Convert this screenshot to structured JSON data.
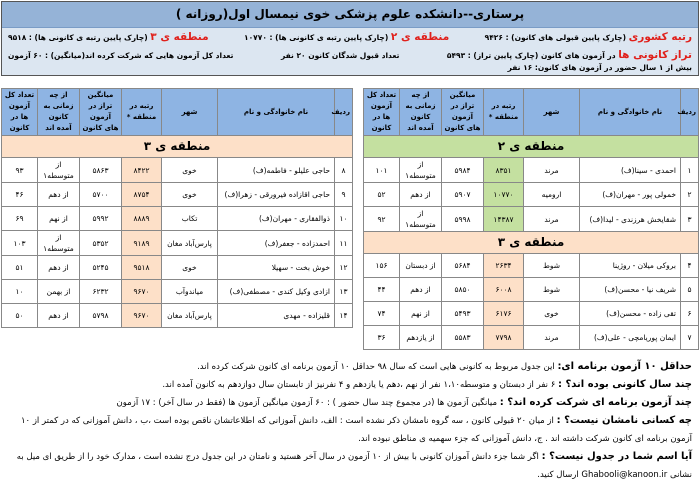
{
  "header": {
    "title": "پرستاری--دانشکده علوم پزشکی خوی نیمسال اول(روزانه )",
    "national_rank_label": "رتبه کشوری",
    "national_rank_text": "(چارک پایین قبولی های کانون) : ۹۴۲۶",
    "region2_label": "منطقه ی ۲",
    "region2_text": "(چارک پایین رتبه ی کانونی ها) : ۱۰۷۷۰",
    "region3_label": "منطقه ی ۳",
    "region3_text": "(چارک پایین رتبه ی کانونی ها) : ۹۵۱۸",
    "taraz_label": "تراز کانونی ها",
    "taraz_text": "در آزمون های کانون (چارک پایین تراز) : ۵۴۹۳",
    "accepted_count": "تعداد قبول شدگان کانون ۲۰ نفر",
    "total_exams": "تعداد کل آزمون هایی که شرکت کرده اند(میانگین) : ۶۰ آزمون",
    "over_one_year": "بیش از ۱ سال حضور در آزمون های کانون: ۱۶ نفر"
  },
  "columns": [
    "ردیف",
    "نام خانوادگی و نام",
    "شهر",
    "رتبه در منطقه *",
    "میانگین تراز در آزمون های کانون",
    "از چه زمانی به کانون آمده اند",
    "تعداد کل آزمون ها در کانون"
  ],
  "right_table": {
    "groups": [
      {
        "region": "منطقه ی ۲",
        "color": "#c4e0a0",
        "rows": [
          [
            "۱",
            "احمدی - سینا(ف)",
            "مرند",
            "۸۳۵۱",
            "۵۹۸۴",
            "از متوسطه۱",
            "۱۰۱"
          ],
          [
            "۲",
            "خمولی پور - مهران(ف)",
            "ارومیه",
            "۱۰۷۷۰",
            "۵۹۰۷",
            "از دهم",
            "۵۲"
          ],
          [
            "۳",
            "شقایخش هرزندی - لیدا(ف)",
            "مرند",
            "۱۴۳۸۷",
            "۵۹۹۸",
            "از متوسطه۱",
            "۹۲"
          ]
        ]
      },
      {
        "region": "منطقه ی ۳",
        "color": "#fde0c8",
        "rows": [
          [
            "۴",
            "بروکی میلان - روژینا",
            "شوط",
            "۲۶۳۴",
            "۵۶۸۴",
            "از دبستان",
            "۱۵۶"
          ],
          [
            "۵",
            "شریف نیا - محسن(ف)",
            "شوط",
            "۶۰۰۸",
            "۵۸۵۰",
            "از دهم",
            "۴۴"
          ],
          [
            "۶",
            "تقی زاده - محسن(ف)",
            "خوی",
            "۶۱۷۶",
            "۵۴۹۳",
            "از نهم",
            "۷۴"
          ],
          [
            "۷",
            "ایمان پوریامچی - علی(ف)",
            "مرند",
            "۷۷۹۸",
            "۵۵۸۳",
            "از یازدهم",
            "۳۶"
          ]
        ]
      }
    ]
  },
  "left_table": {
    "groups": [
      {
        "region": "منطقه ی ۳",
        "color": "#fde0c8",
        "rows": [
          [
            "۸",
            "حاجی علیلو - فاطمه(ف)",
            "خوی",
            "۸۴۲۲",
            "۵۸۶۳",
            "از متوسطه۱",
            "۹۳"
          ],
          [
            "۹",
            "حاجی اقازاده فیرورقی - زهرا(ف)",
            "خوی",
            "۸۷۵۴",
            "۵۷۰۰",
            "از دهم",
            "۴۶"
          ],
          [
            "۱۰",
            "ذوالفقاری - مهران(ف)",
            "تکاب",
            "۸۸۸۹",
            "۵۹۹۲",
            "از نهم",
            "۶۹"
          ],
          [
            "۱۱",
            "احمدزاده - جعفر(ف)",
            "پارس‌آباد مغان",
            "۹۱۸۹",
            "۵۳۵۲",
            "از متوسطه۱",
            "۱۰۳"
          ],
          [
            "۱۲",
            "خوش بخت - سهیلا",
            "خوی",
            "۹۵۱۸",
            "۵۲۴۵",
            "از دهم",
            "۵۱"
          ],
          [
            "۱۳",
            "ازادی وکیل کندی - مصطفی(ف)",
            "میاندوآب",
            "۹۶۷۰",
            "۶۲۳۲",
            "از بهمن",
            "۱۰"
          ],
          [
            "۱۴",
            "قلیزاده - مهدی",
            "پارس‌آباد مغان",
            "۹۶۷۰",
            "۵۷۹۸",
            "از دهم",
            "۵۰"
          ]
        ]
      }
    ]
  },
  "notes": [
    {
      "label": "حداقل ۱۰ آزمون برنامه ای:",
      "text": " این جدول مربوط به کانونی هایی است که سال ۹۸ حداقل ۱۰ آزمون برنامه ای کانون شرکت کرده اند."
    },
    {
      "label": "چند سال کانونی بوده اند؟ :",
      "text": " ۶ نفر از دبستان و متوسطه۱،۱۰ نفر از نهم ،دهم یا یازدهم و ۴ نفرنیز از تابستان سال دوازدهم به کانون آمده اند."
    },
    {
      "label": "چند آزمون برنامه ای شرکت کرده اند؟ :",
      "text": " میانگین آزمون ها (در مجموع چند سال حضور ) : ۶۰ آزمون     میانگین آزمون ها (فقط در سال آخر) : ۱۷ آزمون"
    },
    {
      "label": "چه کسانی نامشان نیست؟ :",
      "text": " از میان ۲۰ قبولی کانون ، سه گروه نامشان ذکر نشده است : الف، دانش آموزانی که اطلاعاتشان ناقص بوده است ،ب ، دانش آموزانی که در کمتر از ۱۰ آزمون برنامه ای کانون شرکت داشته اند . ج، دانش آموزانی که جزء سهمیه ی مناطق نبوده اند."
    },
    {
      "label": "آیا اسم شما در جدول نیست؟ :",
      "text": " اگر شما جزء دانش آموزان کانونی با بیش از ۱۰ آزمون در سال آخر هستید و نامتان در این جدول درج نشده است ، مدارک خود را از طریق ای میل به نشانی Ghabooli@kanoon.ir ارسال کنید."
    }
  ]
}
